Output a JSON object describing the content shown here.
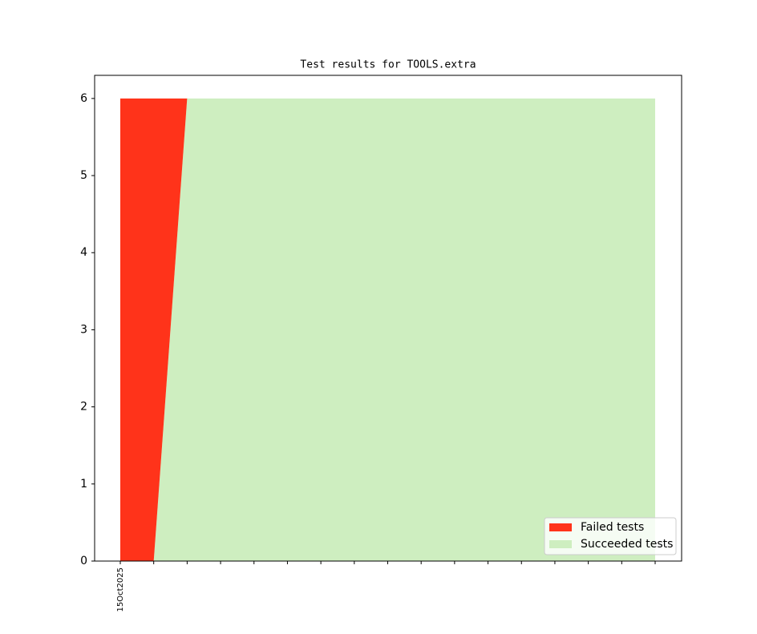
{
  "chart_data": {
    "type": "stacked-area",
    "title": "Test results for TOOLS.extra",
    "categories": [
      "15Oct2025",
      null,
      null,
      null,
      null,
      null,
      null,
      null,
      null,
      null,
      null,
      null,
      null,
      null,
      null,
      null,
      null
    ],
    "series": [
      {
        "name": "Failed tests",
        "color": "#ff331a",
        "values": [
          6,
          6,
          0,
          0,
          0,
          0,
          0,
          0,
          0,
          0,
          0,
          0,
          0,
          0,
          0,
          0,
          0
        ]
      },
      {
        "name": "Succeeded tests",
        "color": "#ceeec0",
        "values": [
          0,
          0,
          6,
          6,
          6,
          6,
          6,
          6,
          6,
          6,
          6,
          6,
          6,
          6,
          6,
          6,
          6
        ]
      }
    ],
    "ylim": [
      0,
      6.3
    ],
    "yticks": [
      0,
      1,
      2,
      3,
      4,
      5,
      6
    ],
    "legend": "lower right"
  }
}
